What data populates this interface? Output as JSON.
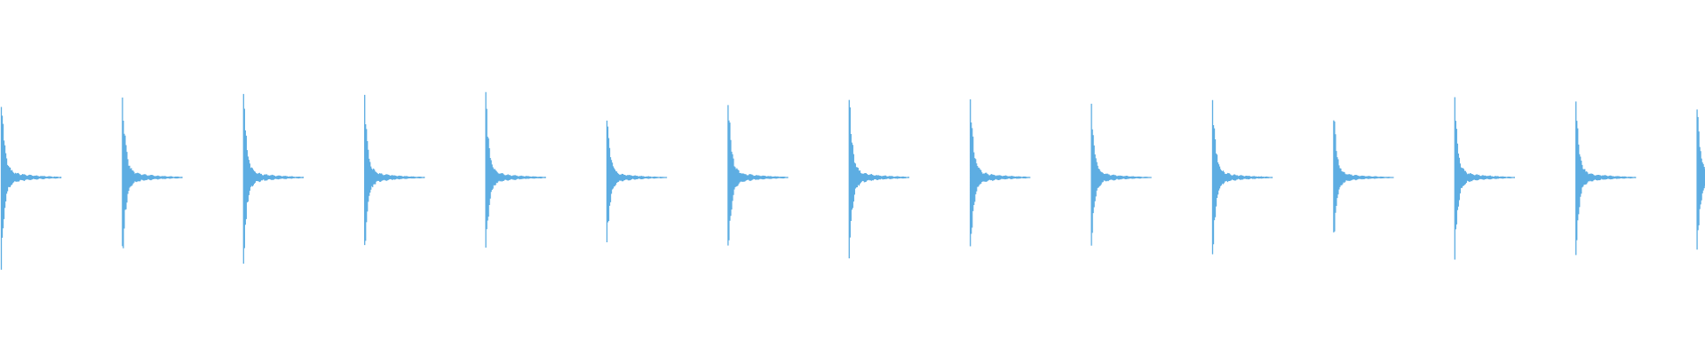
{
  "waveform": {
    "color": "#5DADE2",
    "background": "#FFFFFF",
    "transients": [
      {
        "peak_pos": 0.53,
        "peak_neg": 0.53
      },
      {
        "peak_pos": 0.515,
        "peak_neg": 0.51
      },
      {
        "peak_pos": 0.505,
        "peak_neg": 0.5
      },
      {
        "peak_pos": 0.49,
        "peak_neg": 0.48
      },
      {
        "peak_pos": 0.485,
        "peak_neg": 0.48
      },
      {
        "peak_pos": 0.41,
        "peak_neg": 0.42
      },
      {
        "peak_pos": 0.51,
        "peak_neg": 0.505
      },
      {
        "peak_pos": 0.515,
        "peak_neg": 0.505
      },
      {
        "peak_pos": 0.51,
        "peak_neg": 0.5
      },
      {
        "peak_pos": 0.43,
        "peak_neg": 0.435
      },
      {
        "peak_pos": 0.48,
        "peak_neg": 0.48
      },
      {
        "peak_pos": 0.4,
        "peak_neg": 0.39
      },
      {
        "peak_pos": 0.47,
        "peak_neg": 0.47
      },
      {
        "peak_pos": 0.465,
        "peak_neg": 0.465
      },
      {
        "peak_pos": 0.485,
        "peak_neg": 0.475
      }
    ]
  }
}
